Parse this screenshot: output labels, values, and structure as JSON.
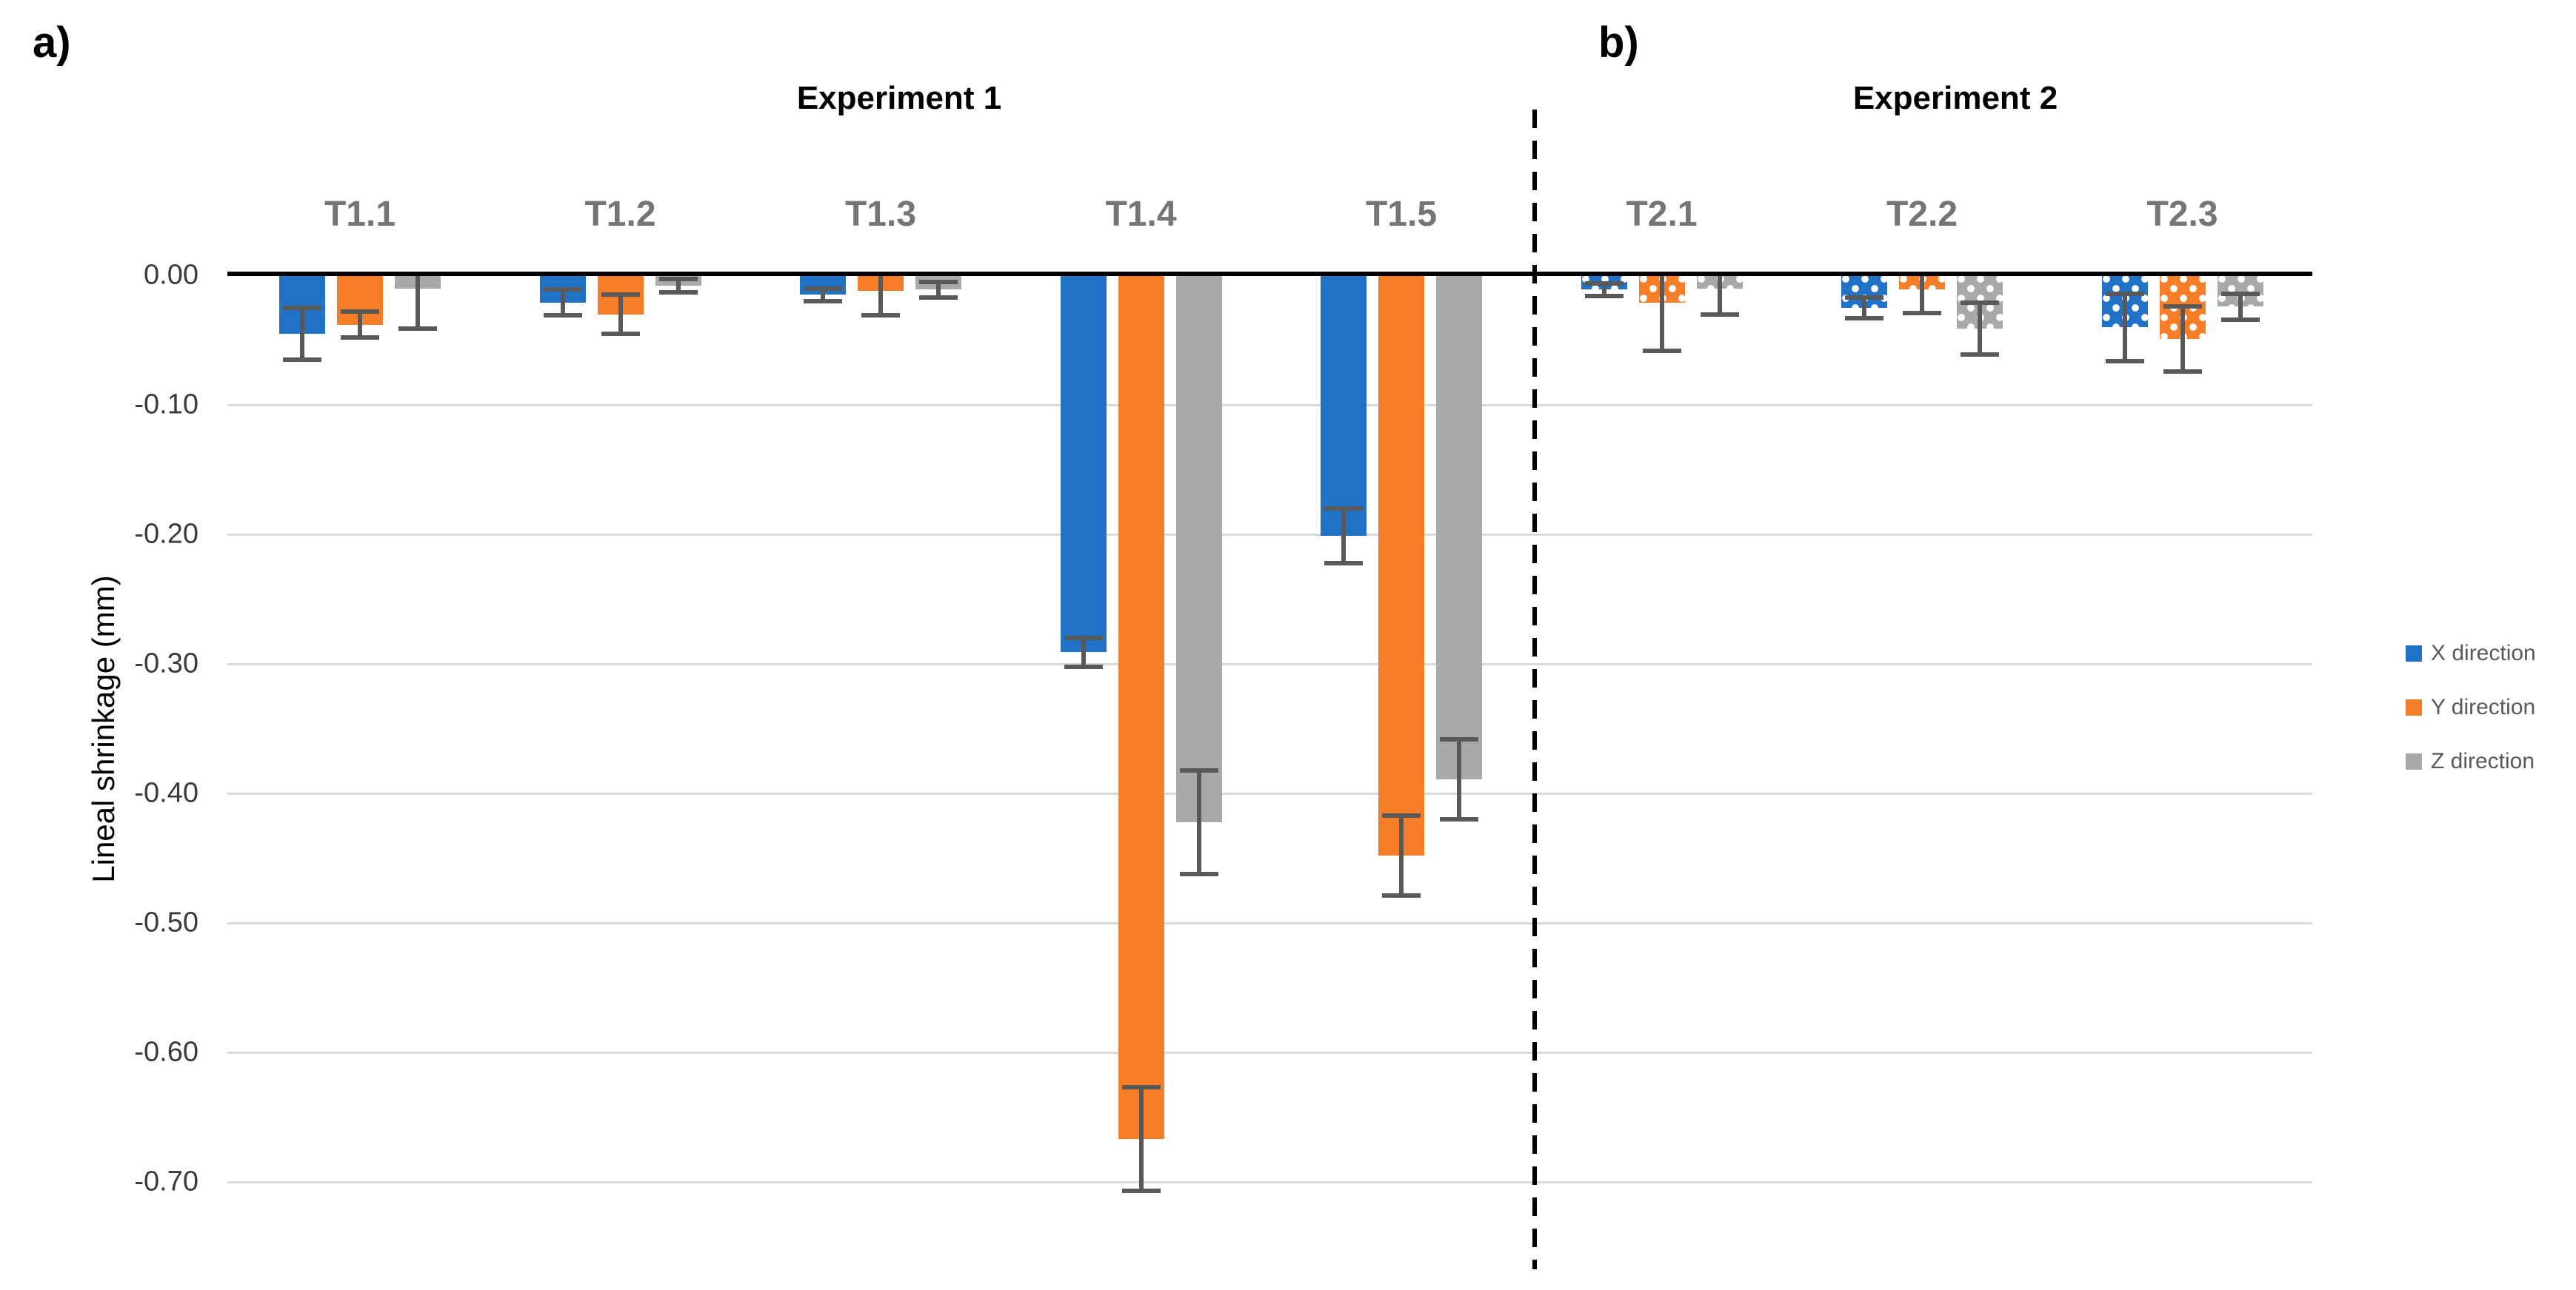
{
  "figure": {
    "panel_a": {
      "letter": "a)",
      "title": "Experiment 1"
    },
    "panel_b": {
      "letter": "b)",
      "title": "Experiment 2"
    },
    "y_axis": {
      "title": "Lineal shrinkage (mm)",
      "tick_labels": [
        "0.00",
        "-0.10",
        "-0.20",
        "-0.30",
        "-0.40",
        "-0.50",
        "-0.60",
        "-0.70"
      ]
    },
    "legend": {
      "items": [
        {
          "label": "X direction",
          "color": "#1F72C5"
        },
        {
          "label": "Y direction",
          "color": "#F67E28"
        },
        {
          "label": "Z direction",
          "color": "#A9A9A9"
        }
      ]
    }
  },
  "chart_data": {
    "type": "bar",
    "title": "",
    "xlabel": "",
    "ylabel": "Lineal shrinkage (mm)",
    "ylim": [
      -0.75,
      0.02
    ],
    "y_tick_step": 0.1,
    "grid": true,
    "legend_position": "right",
    "series": [
      "X direction",
      "Y direction",
      "Z direction"
    ],
    "series_colors": [
      "#1F72C5",
      "#F67E28",
      "#A9A9A9"
    ],
    "error_bar_color": "#595959",
    "panels": [
      {
        "letter": "a)",
        "title": "Experiment 1",
        "bar_fill": "solid",
        "groups": [
          {
            "name": "T1.1",
            "values": [
              -0.045,
              -0.038,
              -0.01
            ],
            "errors": [
              0.02,
              0.01,
              0.031
            ]
          },
          {
            "name": "T1.2",
            "values": [
              -0.021,
              -0.03,
              -0.008
            ],
            "errors": [
              0.01,
              0.015,
              0.005
            ]
          },
          {
            "name": "T1.3",
            "values": [
              -0.015,
              -0.012,
              -0.011
            ],
            "errors": [
              0.005,
              0.019,
              0.006
            ]
          },
          {
            "name": "T1.4",
            "values": [
              -0.291,
              -0.667,
              -0.422
            ],
            "errors": [
              0.011,
              0.04,
              0.04
            ]
          },
          {
            "name": "T1.5",
            "values": [
              -0.201,
              -0.448,
              -0.389
            ],
            "errors": [
              0.021,
              0.031,
              0.031
            ]
          }
        ]
      },
      {
        "letter": "b)",
        "title": "Experiment 2",
        "bar_fill": "white-dots",
        "groups": [
          {
            "name": "T2.1",
            "values": [
              -0.011,
              -0.021,
              -0.01
            ],
            "errors": [
              0.005,
              0.037,
              0.02
            ]
          },
          {
            "name": "T2.2",
            "values": [
              -0.025,
              -0.011,
              -0.041
            ],
            "errors": [
              0.008,
              0.018,
              0.02
            ]
          },
          {
            "name": "T2.3",
            "values": [
              -0.04,
              -0.049,
              -0.024
            ],
            "errors": [
              0.026,
              0.025,
              0.01
            ]
          }
        ]
      }
    ]
  }
}
